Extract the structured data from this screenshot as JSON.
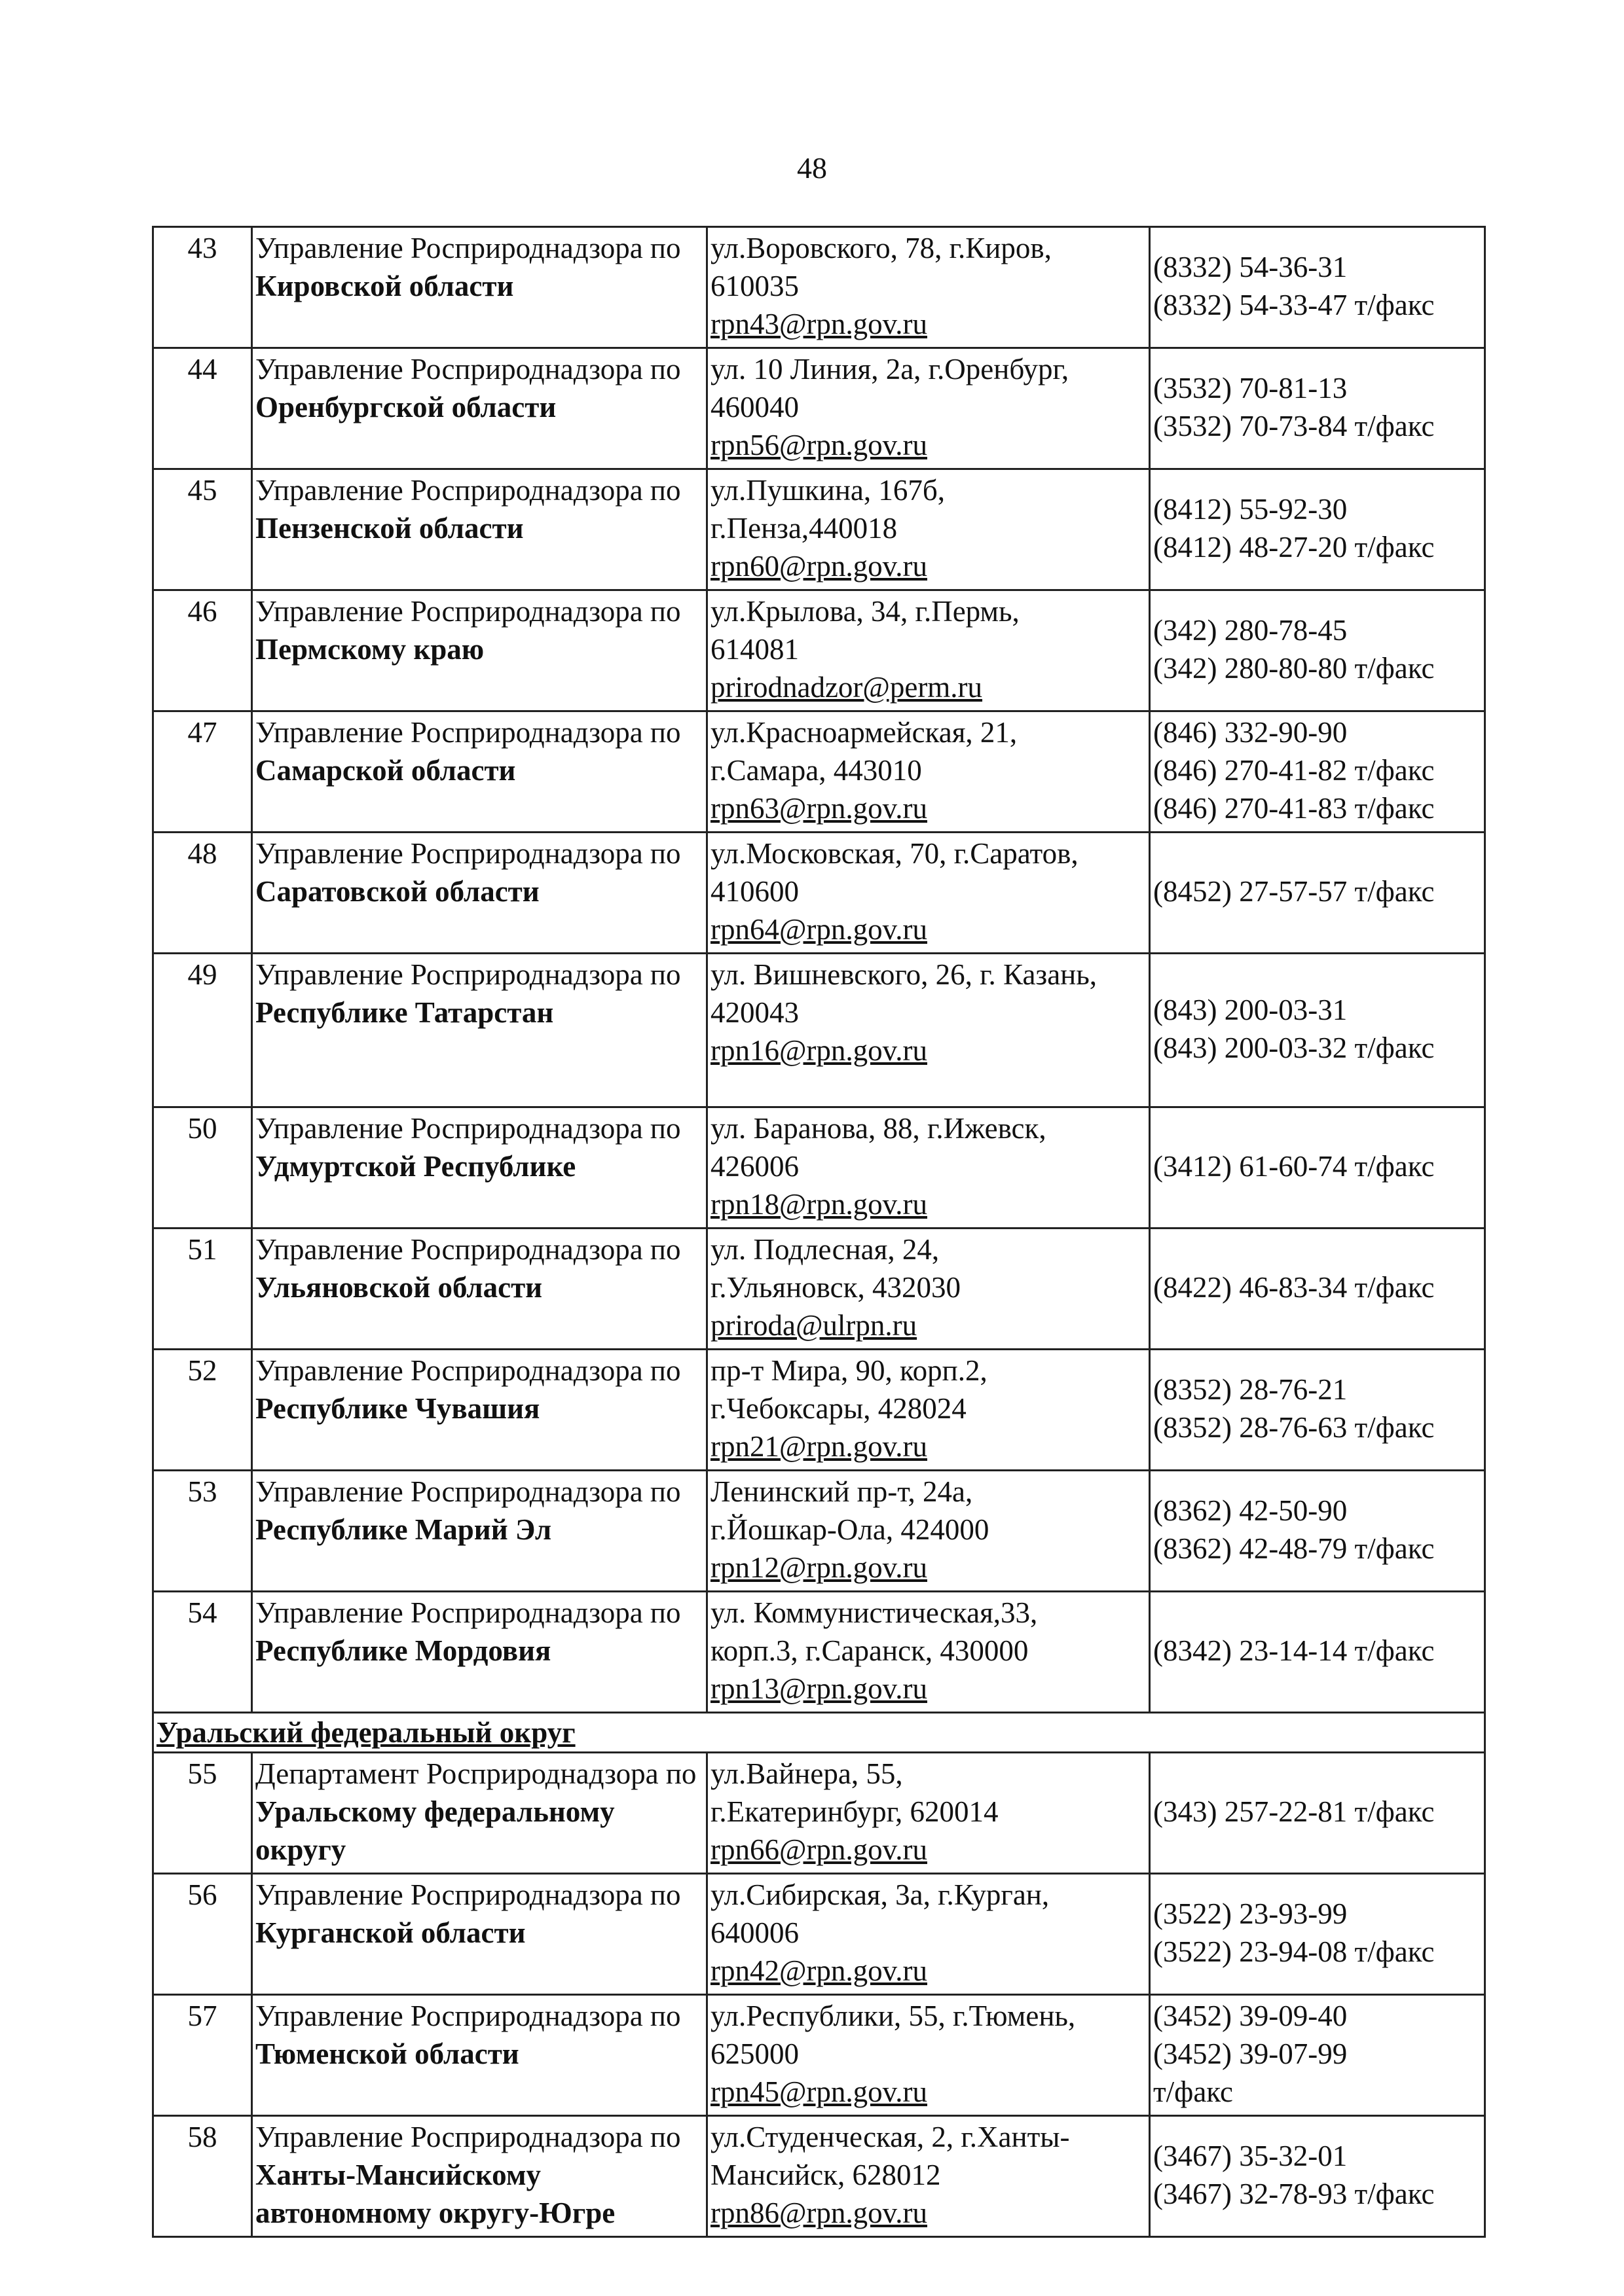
{
  "page_number": "48",
  "rows": [
    {
      "number": "43",
      "org": "Управление Росприроднадзора по",
      "region": "Кировской области",
      "address": [
        "ул.Воровского, 78, г.Киров,",
        "610035"
      ],
      "email": "rpn43@rpn.gov.ru",
      "phones": [
        "(8332) 54-36-31",
        "(8332) 54-33-47 т/факс"
      ]
    },
    {
      "number": "44",
      "org": "Управление Росприроднадзора по",
      "region": "Оренбургской области",
      "address": [
        "ул. 10 Линия, 2а, г.Оренбург,",
        "460040"
      ],
      "email": "rpn56@rpn.gov.ru",
      "phones": [
        "(3532) 70-81-13",
        "(3532) 70-73-84 т/факс"
      ]
    },
    {
      "number": "45",
      "org": "Управление Росприроднадзора по",
      "region": "Пензенской области",
      "address": [
        "ул.Пушкина, 167б,",
        "г.Пенза,440018"
      ],
      "email": "rpn60@rpn.gov.ru",
      "phones": [
        "(8412) 55-92-30",
        "(8412) 48-27-20 т/факс"
      ]
    },
    {
      "number": "46",
      "org": "Управление Росприроднадзора по",
      "region": "Пермскому краю",
      "address": [
        "ул.Крылова, 34, г.Пермь,",
        "614081"
      ],
      "email": "prirodnadzor@perm.ru",
      "phones": [
        "(342) 280-78-45",
        "(342) 280-80-80 т/факс"
      ]
    },
    {
      "number": "47",
      "org": "Управление Росприроднадзора по",
      "region": "Самарской области",
      "address": [
        "ул.Красноармейская, 21,",
        "г.Самара, 443010"
      ],
      "email": "rpn63@rpn.gov.ru",
      "phones": [
        "(846) 332-90-90",
        "(846) 270-41-82 т/факс",
        "(846) 270-41-83 т/факс"
      ]
    },
    {
      "number": "48",
      "org": "Управление Росприроднадзора по",
      "region": "Саратовской области",
      "address": [
        "ул.Московская, 70, г.Саратов,",
        "410600"
      ],
      "email": "rpn64@rpn.gov.ru",
      "phones": [
        "(8452) 27-57-57 т/факс"
      ]
    },
    {
      "number": "49",
      "org": "Управление Росприроднадзора по",
      "region": "Республике Татарстан",
      "address": [
        "ул. Вишневского, 26, г. Казань,",
        "420043"
      ],
      "email": "rpn16@rpn.gov.ru",
      "phones": [
        "(843) 200-03-31",
        "(843) 200-03-32 т/факс"
      ]
    },
    {
      "number": "50",
      "org": "Управление Росприроднадзора по",
      "region": "Удмуртской Республике",
      "address": [
        "ул. Баранова, 88, г.Ижевск,",
        "426006"
      ],
      "email": "rpn18@rpn.gov.ru",
      "phones": [
        "(3412) 61-60-74 т/факс"
      ]
    },
    {
      "number": "51",
      "org": "Управление Росприроднадзора по",
      "region": "Ульяновской области",
      "address": [
        "ул. Подлесная, 24,",
        "г.Ульяновск, 432030"
      ],
      "email": "priroda@ulrpn.ru",
      "phones": [
        "(8422) 46-83-34 т/факс"
      ]
    },
    {
      "number": "52",
      "org": "Управление Росприроднадзора по",
      "region": "Республике Чувашия",
      "address": [
        "пр-т Мира, 90, корп.2,",
        "г.Чебоксары, 428024"
      ],
      "email": "rpn21@rpn.gov.ru",
      "phones": [
        "(8352) 28-76-21",
        "(8352) 28-76-63 т/факс"
      ]
    },
    {
      "number": "53",
      "org": "Управление Росприроднадзора по",
      "region": "Республике Марий Эл",
      "address": [
        "Ленинский пр-т, 24а,",
        "г.Йошкар-Ола, 424000"
      ],
      "email": "rpn12@rpn.gov.ru",
      "phones": [
        "(8362) 42-50-90",
        "(8362) 42-48-79 т/факс"
      ]
    },
    {
      "number": "54",
      "org": "Управление Росприроднадзора по",
      "region": "Республике Мордовия",
      "address": [
        "ул. Коммунистическая,33,",
        "корп.3, г.Саранск, 430000"
      ],
      "email": "rpn13@rpn.gov.ru",
      "phones": [
        "(8342) 23-14-14 т/факс"
      ]
    },
    {
      "section": "Уральский федеральный округ"
    },
    {
      "number": "55",
      "org": "Департамент Росприроднадзора по",
      "region": "Уральскому федеральному округу",
      "address": [
        "ул.Вайнера, 55,",
        "г.Екатеринбург, 620014"
      ],
      "email": "rpn66@rpn.gov.ru",
      "phones": [
        "(343) 257-22-81 т/факс"
      ]
    },
    {
      "number": "56",
      "org": "Управление Росприроднадзора по",
      "region": "Курганской области",
      "address": [
        "ул.Сибирская, 3а, г.Курган,",
        "640006"
      ],
      "email": "rpn42@rpn.gov.ru",
      "phones": [
        "(3522) 23-93-99",
        "(3522) 23-94-08 т/факс"
      ]
    },
    {
      "number": "57",
      "org": "Управление Росприроднадзора по",
      "region": "Тюменской области",
      "address": [
        "ул.Республики, 55, г.Тюмень,",
        "625000"
      ],
      "email": "rpn45@rpn.gov.ru",
      "phones": [
        "(3452) 39-09-40",
        "(3452) 39-07-99",
        "т/факс"
      ]
    },
    {
      "number": "58",
      "org": "Управление Росприроднадзора по",
      "region": "Ханты-Мансийскому автономному округу-Югре",
      "address": [
        "ул.Студенческая, 2, г.Ханты-",
        "Мансийск, 628012"
      ],
      "email": "rpn86@rpn.gov.ru",
      "phones": [
        "(3467) 35-32-01",
        "(3467) 32-78-93 т/факс"
      ]
    }
  ]
}
